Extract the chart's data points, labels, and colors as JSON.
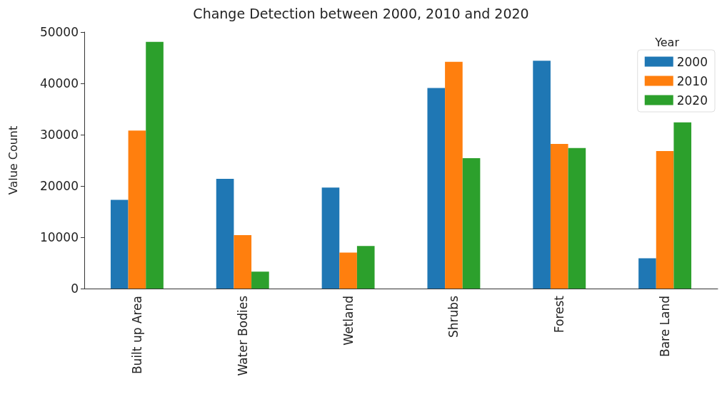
{
  "chart_data": {
    "type": "bar",
    "title": "Change Detection between 2000, 2010 and 2020",
    "ylabel": "Value Count",
    "legend_title": "Year",
    "categories": [
      "Built up Area",
      "Water Bodies",
      "Wetland",
      "Shrubs",
      "Forest",
      "Bare Land"
    ],
    "series": [
      {
        "name": "2000",
        "color": "#1f77b4",
        "values": [
          17300,
          21400,
          19700,
          39100,
          44400,
          5900
        ]
      },
      {
        "name": "2010",
        "color": "#ff7f0e",
        "values": [
          30800,
          10400,
          7000,
          44200,
          28200,
          26800
        ]
      },
      {
        "name": "2020",
        "color": "#2ca02c",
        "values": [
          48100,
          3300,
          8300,
          25400,
          27400,
          32400
        ]
      }
    ],
    "ylim": [
      0,
      50000
    ],
    "yticks": [
      0,
      10000,
      20000,
      30000,
      40000,
      50000
    ],
    "grid": false,
    "legend": "top right"
  }
}
